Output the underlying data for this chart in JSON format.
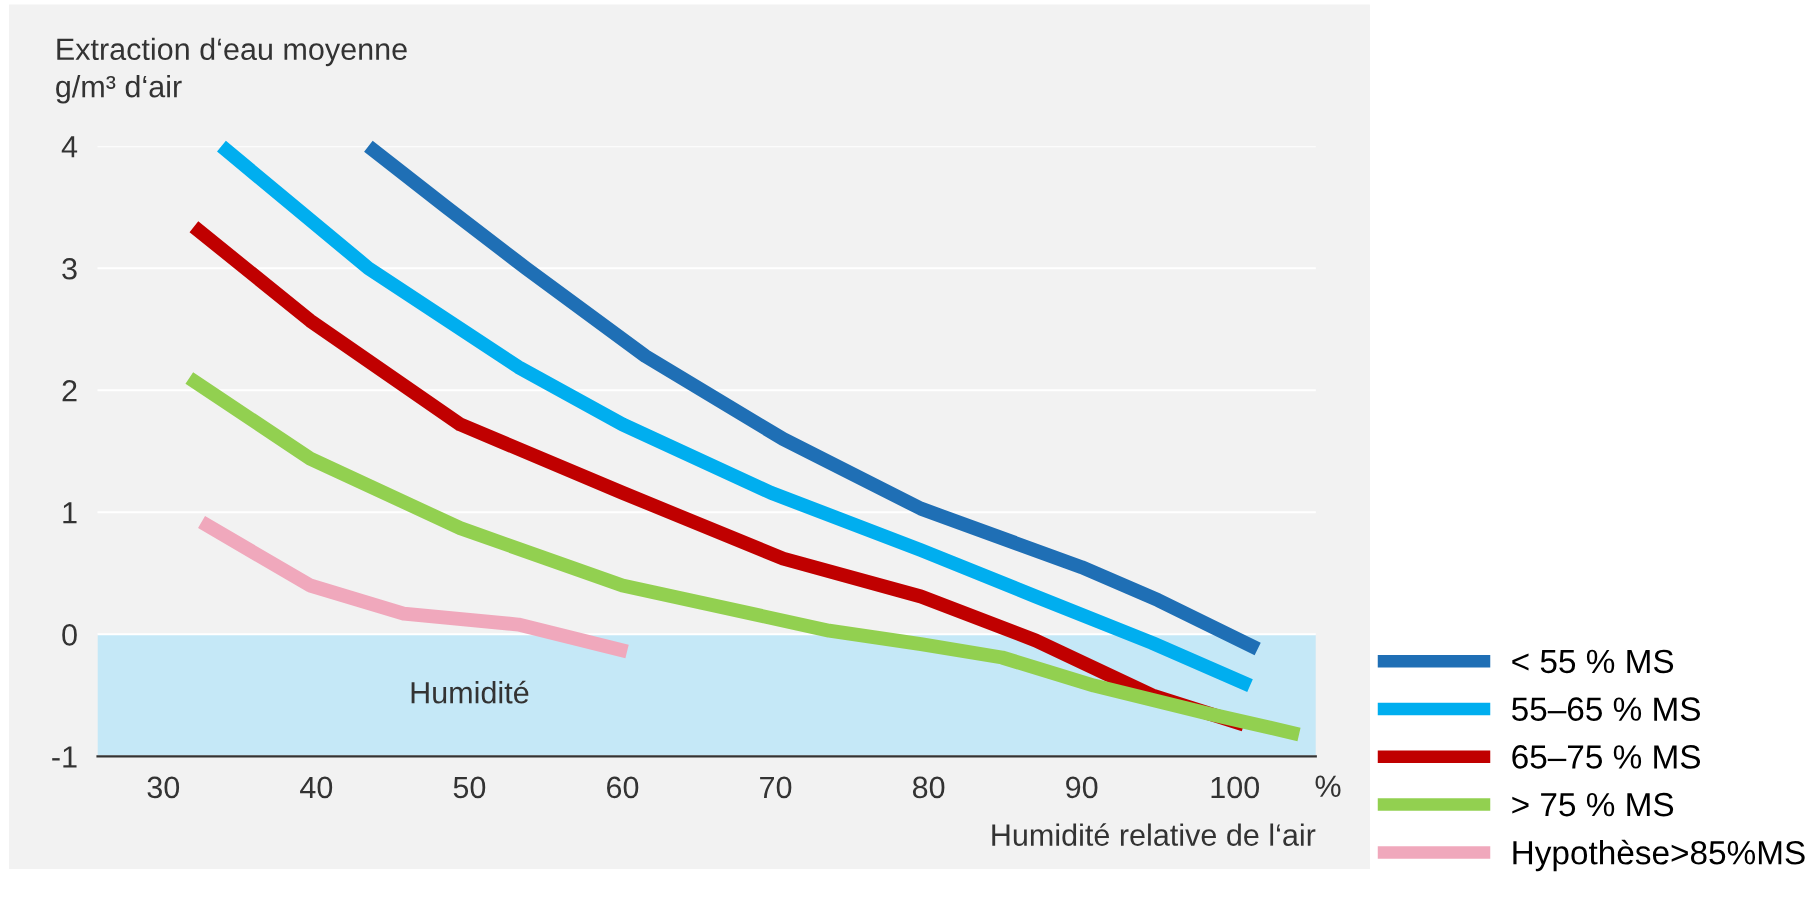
{
  "chart_data": {
    "type": "line",
    "ylabel": "Extraction d‘eau moyenne\ng/m³ d‘air",
    "xlabel": "Humidité relative de l‘air",
    "annotations": [
      "%"
    ],
    "xlim": [
      25.7,
      105.3
    ],
    "xticks": [
      30,
      40,
      50,
      60,
      70,
      80,
      90,
      100
    ],
    "ylim": [
      -1,
      4
    ],
    "yticks": [
      {
        "value": -1,
        "label": "-1"
      },
      0,
      1,
      2,
      3,
      4
    ],
    "grid": "y",
    "legend": "bottom right",
    "line_style": "solid",
    "marker": "none",
    "bands": [
      {
        "axis": "y",
        "from": -1,
        "to": 0,
        "label": "Humidité",
        "color": "#c5e8f7"
      }
    ],
    "series": [
      {
        "name": "< 55 % MS",
        "color": "#1f6fb5",
        "x": [
          43.4,
          48.5,
          53.7,
          61.5,
          70.5,
          79.5,
          90,
          95,
          101.5
        ],
        "values": [
          4.0,
          3.5,
          3.0,
          2.28,
          1.6,
          1.03,
          0.55,
          0.28,
          -0.12
        ]
      },
      {
        "name": "55–65 % MS",
        "color": "#00aeef",
        "x": [
          33.8,
          43.4,
          53.2,
          60,
          69.7,
          79.5,
          87,
          94.6,
          101
        ],
        "values": [
          4.0,
          3.0,
          2.19,
          1.72,
          1.16,
          0.69,
          0.31,
          -0.07,
          -0.42
        ]
      },
      {
        "name": "65–75 % MS",
        "color": "#c00000",
        "x": [
          32,
          39.6,
          49.4,
          60,
          70.5,
          79.5,
          87,
          94.6,
          100.6
        ],
        "values": [
          3.34,
          2.57,
          1.72,
          1.16,
          0.62,
          0.31,
          -0.05,
          -0.5,
          -0.74
        ]
      },
      {
        "name": "> 75 % MS",
        "color": "#92d050",
        "x": [
          31.7,
          39.6,
          49.4,
          60,
          73.5,
          79.5,
          84.8,
          90.8,
          98.3,
          104.2
        ],
        "values": [
          2.1,
          1.44,
          0.87,
          0.4,
          0.03,
          -0.08,
          -0.19,
          -0.42,
          -0.65,
          -0.82
        ]
      },
      {
        "name": "Hypothèse>85%MS",
        "color": "#f0a8bc",
        "x": [
          32.5,
          39.6,
          45.7,
          53.2,
          60.3
        ],
        "values": [
          0.92,
          0.4,
          0.17,
          0.08,
          -0.14
        ]
      }
    ]
  }
}
